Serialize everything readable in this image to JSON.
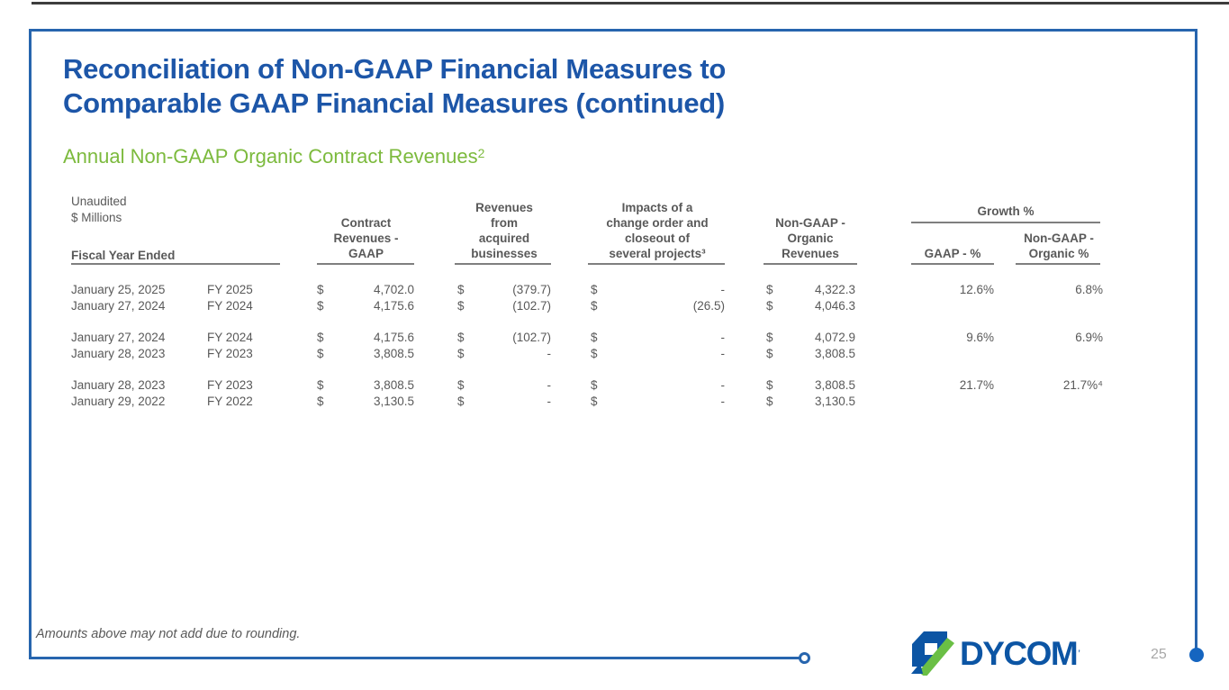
{
  "slide": {
    "title": "Reconciliation of Non-GAAP Financial Measures to Comparable GAAP Financial Measures (continued)",
    "subtitle": "Annual Non-GAAP Organic Contract Revenues",
    "subtitle_superscript": "2",
    "footnote": "Amounts above may not add due to rounding.",
    "page_number": "25"
  },
  "logo": {
    "text": "DYCOM",
    "trademark": "’",
    "blue": "#0C55A4",
    "green": "#6ABF45"
  },
  "colors": {
    "title_blue": "#1D56A8",
    "subtitle_green": "#7CBA3D",
    "table_text": "#595959",
    "frame_blue": "#2765AE",
    "page_number_gray": "#A8A8A8"
  },
  "table": {
    "currency_symbol": "$",
    "unaudited_label": "Unaudited",
    "millions_label": "$ Millions",
    "row_header_label": "Fiscal Year Ended",
    "columns": {
      "contract": "Contract\nRevenues -\nGAAP",
      "acquired": "Revenues\nfrom\nacquired\nbusinesses",
      "impacts": "Impacts of a\nchange order and\ncloseout of\nseveral projects³",
      "organic": "Non-GAAP -\nOrganic\nRevenues",
      "growth_group": "Growth %",
      "growth_gaap": "GAAP - %",
      "growth_organic": "Non-GAAP -\nOrganic %"
    },
    "groups": [
      [
        {
          "date": "January 25, 2025",
          "fy": "FY 2025",
          "gaap": "4,702.0",
          "acquired": "(379.7)",
          "impacts": "-",
          "organic": "4,322.3",
          "growth_gaap": "12.6%",
          "growth_organic": "6.8%"
        },
        {
          "date": "January 27, 2024",
          "fy": "FY 2024",
          "gaap": "4,175.6",
          "acquired": "(102.7)",
          "impacts": "(26.5)",
          "organic": "4,046.3",
          "growth_gaap": "",
          "growth_organic": ""
        }
      ],
      [
        {
          "date": "January 27, 2024",
          "fy": "FY 2024",
          "gaap": "4,175.6",
          "acquired": "(102.7)",
          "impacts": "-",
          "organic": "4,072.9",
          "growth_gaap": "9.6%",
          "growth_organic": "6.9%"
        },
        {
          "date": "January 28, 2023",
          "fy": "FY 2023",
          "gaap": "3,808.5",
          "acquired": "-",
          "impacts": "-",
          "organic": "3,808.5",
          "growth_gaap": "",
          "growth_organic": ""
        }
      ],
      [
        {
          "date": "January 28, 2023",
          "fy": "FY 2023",
          "gaap": "3,808.5",
          "acquired": "-",
          "impacts": "-",
          "organic": "3,808.5",
          "growth_gaap": "21.7%",
          "growth_organic": "21.7%⁴"
        },
        {
          "date": "January 29, 2022",
          "fy": "FY 2022",
          "gaap": "3,130.5",
          "acquired": "-",
          "impacts": "-",
          "organic": "3,130.5",
          "growth_gaap": "",
          "growth_organic": ""
        }
      ]
    ]
  }
}
